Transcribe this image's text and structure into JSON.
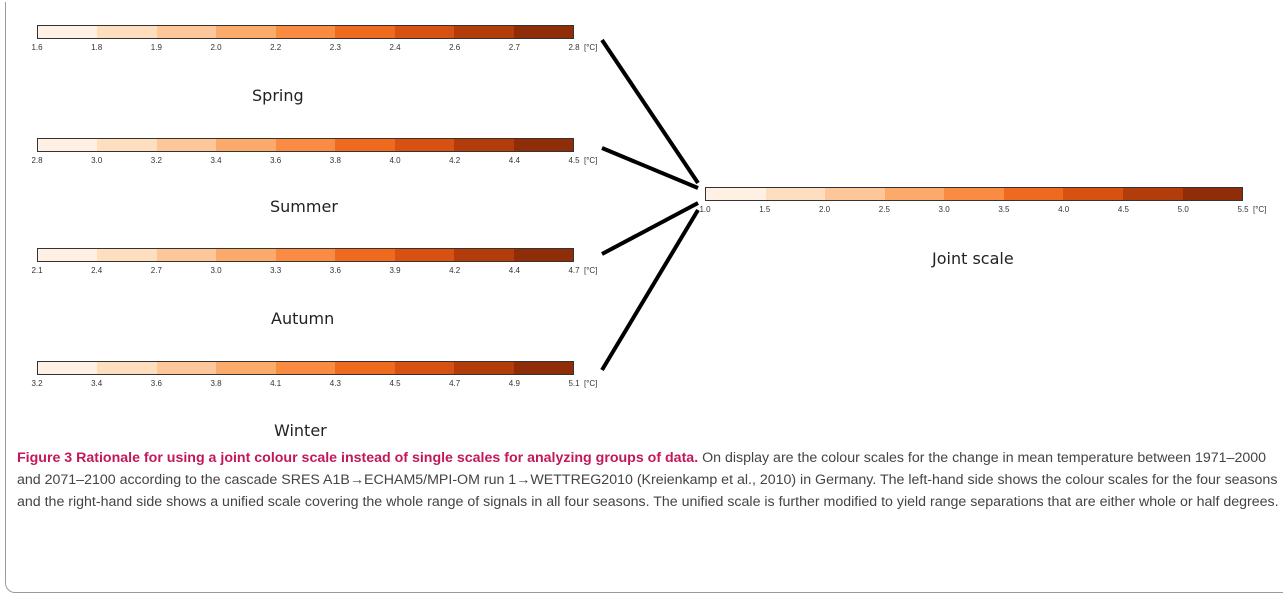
{
  "scales": [
    {
      "id": "spring",
      "label": "Spring",
      "ticks": [
        "1.6",
        "1.8",
        "1.9",
        "2.0",
        "2.2",
        "2.3",
        "2.4",
        "2.6",
        "2.7",
        "2.8"
      ],
      "unit": "[°C]"
    },
    {
      "id": "summer",
      "label": "Summer",
      "ticks": [
        "2.8",
        "3.0",
        "3.2",
        "3.4",
        "3.6",
        "3.8",
        "4.0",
        "4.2",
        "4.4",
        "4.5"
      ],
      "unit": "[°C]"
    },
    {
      "id": "autumn",
      "label": "Autumn",
      "ticks": [
        "2.1",
        "2.4",
        "2.7",
        "3.0",
        "3.3",
        "3.6",
        "3.9",
        "4.2",
        "4.4",
        "4.7"
      ],
      "unit": "[°C]"
    },
    {
      "id": "winter",
      "label": "Winter",
      "ticks": [
        "3.2",
        "3.4",
        "3.6",
        "3.8",
        "4.1",
        "4.3",
        "4.5",
        "4.7",
        "4.9",
        "5.1"
      ],
      "unit": "[°C]"
    }
  ],
  "joint": {
    "label": "Joint scale",
    "ticks": [
      "1.0",
      "1.5",
      "2.0",
      "2.5",
      "3.0",
      "3.5",
      "4.0",
      "4.5",
      "5.0",
      "5.5"
    ],
    "unit": "[°C]"
  },
  "colors": [
    "#fef1e4",
    "#fddfc0",
    "#fdc79a",
    "#fcaa6b",
    "#f98b42",
    "#ee6a1f",
    "#d75110",
    "#b23d0b",
    "#8f2d08"
  ],
  "caption": {
    "title": "Figure 3 Rationale for using a joint colour scale instead of single scales for analyzing groups of data.",
    "body": " On display are the colour scales for the change in mean temperature between 1971–2000 and 2071–2100 according to the cascade SRES A1B→ECHAM5/MPI-OM run 1→WETTREG2010 (Kreienkamp et al., 2010) in Germany. The left-hand side shows the colour scales for the four seasons and the right-hand side shows a unified scale covering the whole range of signals in all four seasons. The unified scale is further modified to yield range separations that are either whole or half degrees."
  }
}
